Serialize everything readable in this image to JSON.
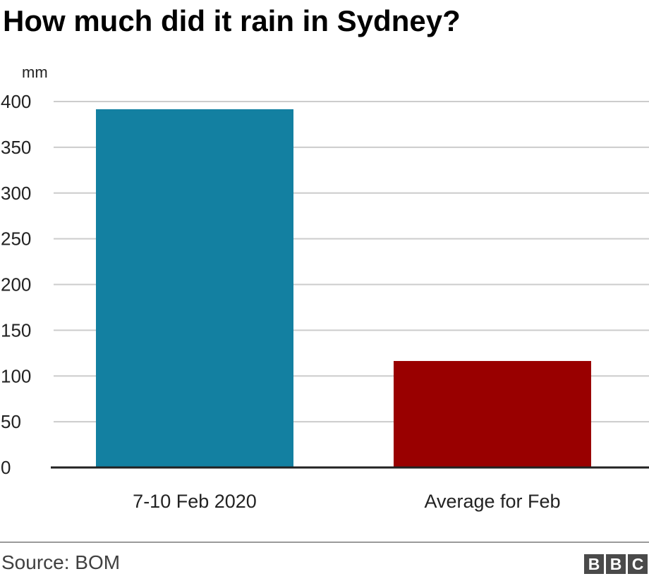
{
  "chart_data": {
    "type": "bar",
    "title": "How much did it rain in Sydney?",
    "ylabel": "mm",
    "xlabel": "",
    "categories": [
      "7-10 Feb 2020",
      "Average for Feb"
    ],
    "values": [
      391.6,
      116.4
    ],
    "colors": [
      "#1380a1",
      "#990000"
    ],
    "ylim": [
      0,
      400
    ],
    "yticks": [
      0,
      50,
      100,
      150,
      200,
      250,
      300,
      350,
      400
    ],
    "grid": true,
    "legend": "none"
  },
  "footer": {
    "source": "Source: BOM",
    "logo": [
      "B",
      "B",
      "C"
    ]
  }
}
